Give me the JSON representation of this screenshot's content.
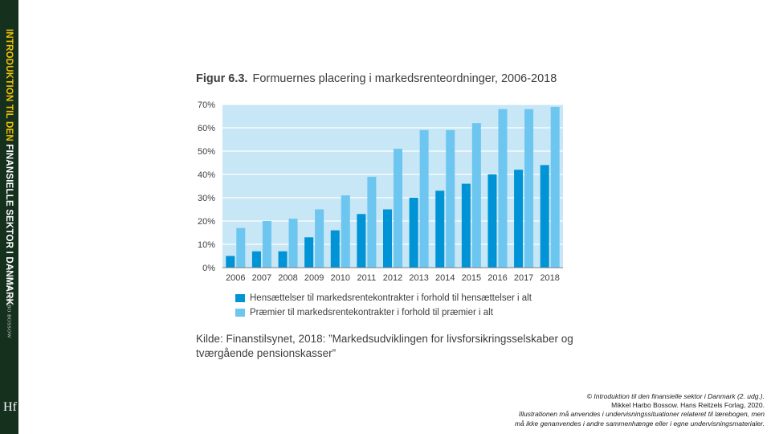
{
  "spine": {
    "title_part1": "INTRODUKTION TIL DEN ",
    "title_part2": "FINANSIELLE SEKTOR I DANMARK",
    "author": "MIKKEL HARBO BOSSOW",
    "logo": "Hf"
  },
  "figure": {
    "label": "Figur 6.3.",
    "title": "Formuernes placering i markedsrenteordninger, 2006-2018"
  },
  "chart_data": {
    "type": "bar",
    "categories": [
      "2006",
      "2007",
      "2008",
      "2009",
      "2010",
      "2011",
      "2012",
      "2013",
      "2014",
      "2015",
      "2016",
      "2017",
      "2018"
    ],
    "series": [
      {
        "name": "Hensættelser til markedsrentekontrakter i forhold til hensættelser i alt",
        "color": "#0093d6",
        "values": [
          5,
          7,
          7,
          13,
          16,
          23,
          25,
          30,
          33,
          36,
          40,
          42,
          44
        ]
      },
      {
        "name": "Præmier til markedsrentekontrakter i forhold til præmier i alt",
        "color": "#6cc6ef",
        "values": [
          17,
          20,
          21,
          25,
          31,
          39,
          51,
          59,
          59,
          62,
          68,
          68,
          69
        ]
      }
    ],
    "yticks": [
      "0%",
      "10%",
      "20%",
      "30%",
      "40%",
      "50%",
      "60%",
      "70%"
    ],
    "ylim": [
      0,
      70
    ],
    "plot_background": "#c7e6f6",
    "grid": true
  },
  "source": {
    "text": "Kilde: Finanstilsynet, 2018: ”Markedsudviklingen for livsforsikringsselskaber og tværgående pensionskasser”"
  },
  "copyright": {
    "line1": "© Introduktion til den finansielle sektor i Danmark (2. udg.).",
    "line2": "Mikkel Harbo Bossow. Hans Reitzels Forlag, 2020.",
    "line3": "Illustrationen må anvendes i undervisningssituationer relateret til lærebogen, men",
    "line4": "må ikke genanvendes i andre sammenhænge eller i egne undervisningsmaterialer."
  }
}
